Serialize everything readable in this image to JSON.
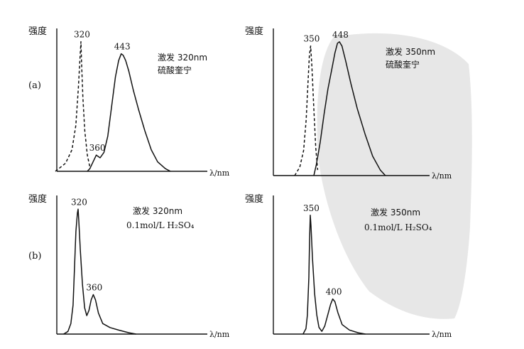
{
  "colors": {
    "ink": "#111111",
    "watermark": "#e7e7e7"
  },
  "row_labels": [
    "(a)",
    "(b)"
  ],
  "chart_data": [
    {
      "type": "line",
      "panel": "a-left",
      "ylabel": "强度",
      "xlabel": "λ/nm",
      "annotation": [
        "激发 320nm",
        "硫酸奎宁"
      ],
      "series": [
        {
          "style": "dashed",
          "points": [
            [
              -40,
              0
            ],
            [
              -24,
              6
            ],
            [
              -14,
              16
            ],
            [
              -8,
              34
            ],
            [
              -4,
              62
            ],
            [
              -1,
              88
            ],
            [
              0,
              96
            ],
            [
              1,
              80
            ],
            [
              3,
              55
            ],
            [
              6,
              30
            ],
            [
              10,
              12
            ],
            [
              14,
              3
            ]
          ]
        },
        {
          "style": "solid",
          "points": [
            [
              10,
              0
            ],
            [
              14,
              2
            ],
            [
              18,
              6
            ],
            [
              24,
              12
            ],
            [
              30,
              10
            ],
            [
              36,
              14
            ],
            [
              42,
              26
            ],
            [
              48,
              48
            ],
            [
              54,
              70
            ],
            [
              59,
              82
            ],
            [
              63,
              87
            ],
            [
              66,
              86
            ],
            [
              70,
              82
            ],
            [
              75,
              74
            ],
            [
              82,
              60
            ],
            [
              90,
              46
            ],
            [
              100,
              30
            ],
            [
              110,
              16
            ],
            [
              120,
              7
            ],
            [
              132,
              2
            ],
            [
              140,
              0
            ]
          ]
        }
      ],
      "peaks": [
        {
          "label": "320",
          "series": 0,
          "x": 0,
          "y": 96
        },
        {
          "label": "360",
          "series": 1,
          "x": 24,
          "y": 12
        },
        {
          "label": "443",
          "series": 1,
          "x": 63,
          "y": 87
        }
      ]
    },
    {
      "type": "line",
      "panel": "a-right",
      "ylabel": "强度",
      "xlabel": "λ/nm",
      "annotation": [
        "激发 350nm",
        "硫酸奎宁"
      ],
      "series": [
        {
          "style": "dashed",
          "points": [
            [
              -30,
              0
            ],
            [
              -22,
              6
            ],
            [
              -16,
              18
            ],
            [
              -12,
              40
            ],
            [
              -9,
              68
            ],
            [
              -7,
              86
            ],
            [
              -5,
              93
            ],
            [
              -3,
              78
            ],
            [
              0,
              48
            ],
            [
              3,
              20
            ],
            [
              6,
              4
            ]
          ]
        },
        {
          "style": "solid",
          "points": [
            [
              0,
              0
            ],
            [
              4,
              8
            ],
            [
              10,
              24
            ],
            [
              16,
              44
            ],
            [
              22,
              62
            ],
            [
              28,
              76
            ],
            [
              33,
              88
            ],
            [
              37,
              95
            ],
            [
              40,
              96
            ],
            [
              44,
              93
            ],
            [
              50,
              82
            ],
            [
              58,
              66
            ],
            [
              68,
              48
            ],
            [
              80,
              30
            ],
            [
              92,
              14
            ],
            [
              104,
              4
            ],
            [
              112,
              0
            ]
          ]
        }
      ],
      "peaks": [
        {
          "label": "350",
          "series": 0,
          "x": -5,
          "y": 93
        },
        {
          "label": "448",
          "series": 1,
          "x": 40,
          "y": 96
        }
      ]
    },
    {
      "type": "line",
      "panel": "b-left",
      "ylabel": "强度",
      "xlabel": "λ/nm",
      "annotation": [
        "激发 320nm",
        "0.1mol/L H₂SO₄"
      ],
      "series": [
        {
          "style": "solid",
          "points": [
            [
              -20,
              0
            ],
            [
              -14,
              2
            ],
            [
              -10,
              8
            ],
            [
              -7,
              22
            ],
            [
              -5,
              50
            ],
            [
              -3,
              78
            ],
            [
              -1,
              92
            ],
            [
              0,
              95
            ],
            [
              1,
              86
            ],
            [
              3,
              64
            ],
            [
              6,
              38
            ],
            [
              9,
              20
            ],
            [
              12,
              14
            ],
            [
              15,
              18
            ],
            [
              18,
              26
            ],
            [
              21,
              30
            ],
            [
              24,
              26
            ],
            [
              28,
              16
            ],
            [
              34,
              8
            ],
            [
              44,
              5
            ],
            [
              56,
              3
            ],
            [
              70,
              1
            ],
            [
              80,
              0
            ]
          ]
        }
      ],
      "peaks": [
        {
          "label": "320",
          "series": 0,
          "x": 0,
          "y": 95
        },
        {
          "label": "360",
          "series": 0,
          "x": 21,
          "y": 30
        }
      ]
    },
    {
      "type": "line",
      "panel": "b-right",
      "ylabel": "强度",
      "xlabel": "λ/nm",
      "annotation": [
        "激发 350nm",
        "0.1mol/L H₂SO₄"
      ],
      "series": [
        {
          "style": "solid",
          "points": [
            [
              -10,
              0
            ],
            [
              -6,
              4
            ],
            [
              -4,
              14
            ],
            [
              -2,
              42
            ],
            [
              -1,
              70
            ],
            [
              0,
              88
            ],
            [
              1,
              80
            ],
            [
              3,
              56
            ],
            [
              6,
              30
            ],
            [
              9,
              14
            ],
            [
              12,
              5
            ],
            [
              16,
              2
            ],
            [
              20,
              6
            ],
            [
              24,
              14
            ],
            [
              28,
              22
            ],
            [
              31,
              26
            ],
            [
              34,
              24
            ],
            [
              38,
              16
            ],
            [
              44,
              7
            ],
            [
              54,
              3
            ],
            [
              66,
              1
            ],
            [
              76,
              0
            ]
          ]
        }
      ],
      "peaks": [
        {
          "label": "350",
          "series": 0,
          "x": 0,
          "y": 88
        },
        {
          "label": "400",
          "series": 0,
          "x": 31,
          "y": 26
        }
      ]
    }
  ]
}
